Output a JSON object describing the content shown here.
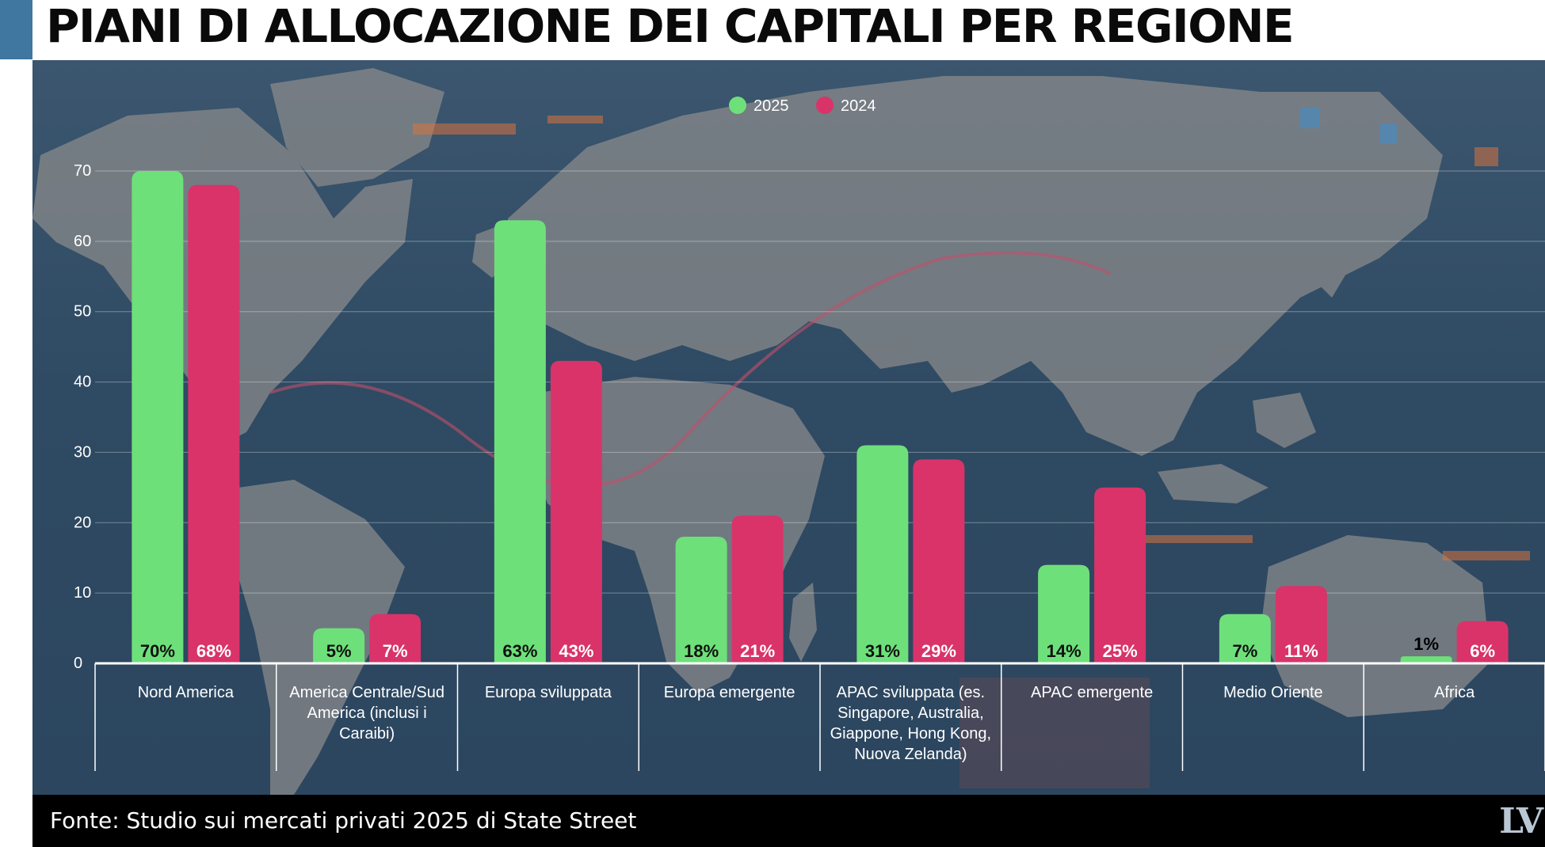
{
  "title": "PIANI DI ALLOCAZIONE DEI CAPITALI PER REGIONE",
  "source": "Fonte: Studio sui mercati privati 2025 di State Street",
  "logo_text": "LV",
  "colors": {
    "accent": "#3f77a0",
    "series_2025": "#6ee07a",
    "series_2024": "#d9336a",
    "background": "#2f4a63"
  },
  "chart_data": {
    "type": "bar",
    "title": "PIANI DI ALLOCAZIONE DEI CAPITALI PER REGIONE",
    "xlabel": "",
    "ylabel": "",
    "ylim": [
      0,
      70
    ],
    "yticks": [
      0,
      10,
      20,
      30,
      40,
      50,
      60,
      70
    ],
    "grid": true,
    "legend_position": "top-center",
    "categories": [
      "Nord America",
      "America Centrale/Sud America (inclusi i Caraibi)",
      "Europa sviluppata",
      "Europa emergente",
      "APAC sviluppata (es. Singapore, Australia, Giappone, Hong Kong, Nuova Zelanda)",
      "APAC emergente",
      "Medio Oriente",
      "Africa"
    ],
    "category_lines": [
      [
        "Nord America"
      ],
      [
        "America Centrale/Sud",
        "America (inclusi i",
        "Caraibi)"
      ],
      [
        "Europa sviluppata"
      ],
      [
        "Europa emergente"
      ],
      [
        "APAC sviluppata (es.",
        "Singapore, Australia,",
        "Giappone, Hong Kong,",
        "Nuova Zelanda)"
      ],
      [
        "APAC emergente"
      ],
      [
        "Medio Oriente"
      ],
      [
        "Africa"
      ]
    ],
    "series": [
      {
        "name": "2025",
        "color": "#6ee07a",
        "values": [
          70,
          5,
          63,
          18,
          31,
          14,
          7,
          1
        ],
        "labels": [
          "70%",
          "5%",
          "63%",
          "18%",
          "31%",
          "14%",
          "7%",
          "1%"
        ]
      },
      {
        "name": "2024",
        "color": "#d9336a",
        "values": [
          68,
          7,
          43,
          21,
          29,
          25,
          11,
          6
        ],
        "labels": [
          "68%",
          "7%",
          "43%",
          "21%",
          "29%",
          "25%",
          "11%",
          "6%"
        ]
      }
    ]
  }
}
